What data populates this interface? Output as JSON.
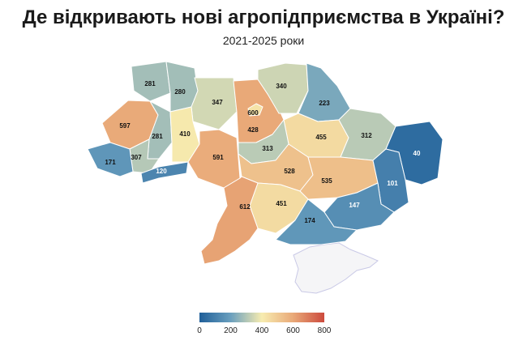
{
  "title": "Де відкривають нові агропідприємства в Україні?",
  "subtitle": "2021-2025 роки",
  "legend": {
    "min": 0,
    "max": 800,
    "ticks": [
      "0",
      "200",
      "400",
      "600",
      "800"
    ],
    "colors": [
      "#1f5f99",
      "#6a9fbe",
      "#f7ecb0",
      "#e9a978",
      "#cc4a3d"
    ]
  },
  "regions": [
    {
      "id": "volyn",
      "value": 281
    },
    {
      "id": "rivne",
      "value": 280
    },
    {
      "id": "zhytomyr",
      "value": 347
    },
    {
      "id": "kyiv-oblast",
      "value": 600
    },
    {
      "id": "chernihiv",
      "value": 340
    },
    {
      "id": "sumy",
      "value": 223
    },
    {
      "id": "lviv",
      "value": 597
    },
    {
      "id": "ternopil",
      "value": 281
    },
    {
      "id": "khmelnytskyi",
      "value": 410
    },
    {
      "id": "kyiv-city",
      "value": 428
    },
    {
      "id": "poltava",
      "value": 455
    },
    {
      "id": "kharkiv",
      "value": 312
    },
    {
      "id": "luhansk",
      "value": 40
    },
    {
      "id": "ivano-frankivsk",
      "value": 307
    },
    {
      "id": "zakarpattia",
      "value": 171
    },
    {
      "id": "chernivtsi",
      "value": 120
    },
    {
      "id": "vinnytsia",
      "value": 591
    },
    {
      "id": "cherkasy",
      "value": 313
    },
    {
      "id": "kirovohrad",
      "value": 528
    },
    {
      "id": "dnipropetrovsk",
      "value": 535
    },
    {
      "id": "donetsk",
      "value": 101
    },
    {
      "id": "zaporizhzhia",
      "value": 147
    },
    {
      "id": "mykolaiv",
      "value": 451
    },
    {
      "id": "kherson",
      "value": 174
    },
    {
      "id": "odesa",
      "value": 612
    }
  ]
}
